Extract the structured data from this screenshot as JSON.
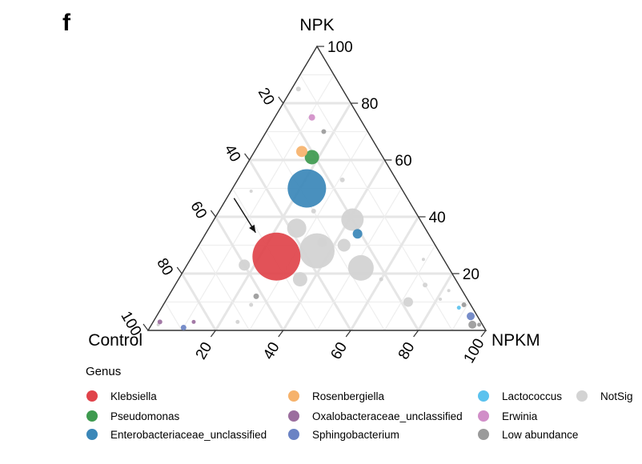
{
  "panel_label": "f",
  "chart_data": {
    "type": "scatter",
    "subtype": "ternary",
    "axes": {
      "top": "NPK",
      "left": "Control",
      "right": "NPKM",
      "range": [
        0,
        100
      ],
      "ticks": [
        20,
        40,
        60,
        80,
        100
      ],
      "tick_labels": [
        "20",
        "40",
        "60",
        "80",
        "100"
      ],
      "grid": true
    },
    "legend": {
      "title": "Genus",
      "placement": "bottom",
      "items": [
        {
          "label": "Klebsiella",
          "color": "#E0434A"
        },
        {
          "label": "Pseudomonas",
          "color": "#3E9A4F"
        },
        {
          "label": "Enterobacteriaceae_unclassified",
          "color": "#3A87B8"
        },
        {
          "label": "Rosenbergiella",
          "color": "#F6B26B"
        },
        {
          "label": "Oxalobacteraceae_unclassified",
          "color": "#9B6E9E"
        },
        {
          "label": "Sphingobacterium",
          "color": "#6B83C4"
        },
        {
          "label": "Lactococcus",
          "color": "#5BC2EE"
        },
        {
          "label": "Erwinia",
          "color": "#D18EC8"
        },
        {
          "label": "Low abundance",
          "color": "#9A9A9A"
        },
        {
          "label": "NotSig",
          "color": "#D3D3D3"
        }
      ]
    },
    "series": [
      {
        "name": "Klebsiella",
        "color": "#E0434A",
        "points": [
          {
            "Control": 49,
            "NPK": 26,
            "NPKM": 25,
            "size": 30
          }
        ]
      },
      {
        "name": "Pseudomonas",
        "color": "#3E9A4F",
        "points": [
          {
            "Control": 21,
            "NPK": 61,
            "NPKM": 18,
            "size": 9
          }
        ]
      },
      {
        "name": "Enterobacteriaceae_unclassified",
        "color": "#3A87B8",
        "points": [
          {
            "Control": 28,
            "NPK": 50,
            "NPKM": 22,
            "size": 24
          },
          {
            "Control": 21,
            "NPK": 34,
            "NPKM": 45,
            "size": 6
          }
        ]
      },
      {
        "name": "Rosenbergiella",
        "color": "#F6B26B",
        "points": [
          {
            "Control": 23,
            "NPK": 63,
            "NPKM": 14,
            "size": 7
          }
        ]
      },
      {
        "name": "Oxalobacteraceae_unclassified",
        "color": "#9B6E9E",
        "points": [
          {
            "Control": 95,
            "NPK": 3,
            "NPKM": 2,
            "size": 3
          },
          {
            "Control": 85,
            "NPK": 3,
            "NPKM": 12,
            "size": 2.5
          }
        ]
      },
      {
        "name": "Sphingobacterium",
        "color": "#6B83C4",
        "points": [
          {
            "Control": 89,
            "NPK": 1,
            "NPKM": 10,
            "size": 3.5
          },
          {
            "Control": 2,
            "NPK": 5,
            "NPKM": 93,
            "size": 5
          }
        ]
      },
      {
        "name": "Lactococcus",
        "color": "#5BC2EE",
        "points": [
          {
            "Control": 4,
            "NPK": 8,
            "NPKM": 88,
            "size": 2.5
          }
        ]
      },
      {
        "name": "Erwinia",
        "color": "#D18EC8",
        "points": [
          {
            "Control": 14,
            "NPK": 75,
            "NPKM": 11,
            "size": 4
          }
        ]
      },
      {
        "name": "Low abundance",
        "color": "#9A9A9A",
        "points": [
          {
            "Control": 13,
            "NPK": 70,
            "NPKM": 17,
            "size": 3
          },
          {
            "Control": 62,
            "NPK": 12,
            "NPKM": 26,
            "size": 3.5
          },
          {
            "Control": 2,
            "NPK": 9,
            "NPKM": 89,
            "size": 3
          },
          {
            "Control": 1,
            "NPK": 2,
            "NPKM": 97,
            "size": 2.5
          },
          {
            "Control": 3,
            "NPK": 2,
            "NPKM": 95,
            "size": 5
          }
        ]
      },
      {
        "name": "NotSig",
        "color": "#D3D3D3",
        "points": [
          {
            "Control": 38,
            "NPK": 36,
            "NPKM": 26,
            "size": 12
          },
          {
            "Control": 36,
            "NPK": 28,
            "NPKM": 36,
            "size": 22
          },
          {
            "Control": 20,
            "NPK": 39,
            "NPKM": 41,
            "size": 14
          },
          {
            "Control": 26,
            "NPK": 22,
            "NPKM": 52,
            "size": 16
          },
          {
            "Control": 46,
            "NPK": 18,
            "NPKM": 36,
            "size": 9
          },
          {
            "Control": 60,
            "NPK": 23,
            "NPKM": 17,
            "size": 7
          },
          {
            "Control": 27,
            "NPK": 30,
            "NPKM": 43,
            "size": 8
          },
          {
            "Control": 33,
            "NPK": 31,
            "NPKM": 36,
            "size": 6
          },
          {
            "Control": 13,
            "NPK": 85,
            "NPKM": 2,
            "size": 3
          },
          {
            "Control": 16,
            "NPK": 53,
            "NPKM": 31,
            "size": 3
          },
          {
            "Control": 45,
            "NPK": 49,
            "NPKM": 6,
            "size": 2
          },
          {
            "Control": 18,
            "NPK": 10,
            "NPKM": 72,
            "size": 6
          },
          {
            "Control": 10,
            "NPK": 16,
            "NPKM": 74,
            "size": 3
          },
          {
            "Control": 65,
            "NPK": 9,
            "NPKM": 26,
            "size": 2.5
          },
          {
            "Control": 72,
            "NPK": 3,
            "NPKM": 25,
            "size": 2.5
          },
          {
            "Control": 6,
            "NPK": 25,
            "NPKM": 69,
            "size": 2
          },
          {
            "Control": 30,
            "NPK": 42,
            "NPKM": 28,
            "size": 3
          },
          {
            "Control": 4,
            "NPK": 14,
            "NPKM": 82,
            "size": 2
          },
          {
            "Control": 8,
            "NPK": 11,
            "NPKM": 81,
            "size": 2
          },
          {
            "Control": 22,
            "NPK": 18,
            "NPKM": 60,
            "size": 2.5
          },
          {
            "Control": 96,
            "NPK": 2,
            "NPKM": 2,
            "size": 2
          }
        ]
      }
    ],
    "annotations": [
      {
        "type": "arrow",
        "pointing_to": "Klebsiella"
      }
    ]
  }
}
